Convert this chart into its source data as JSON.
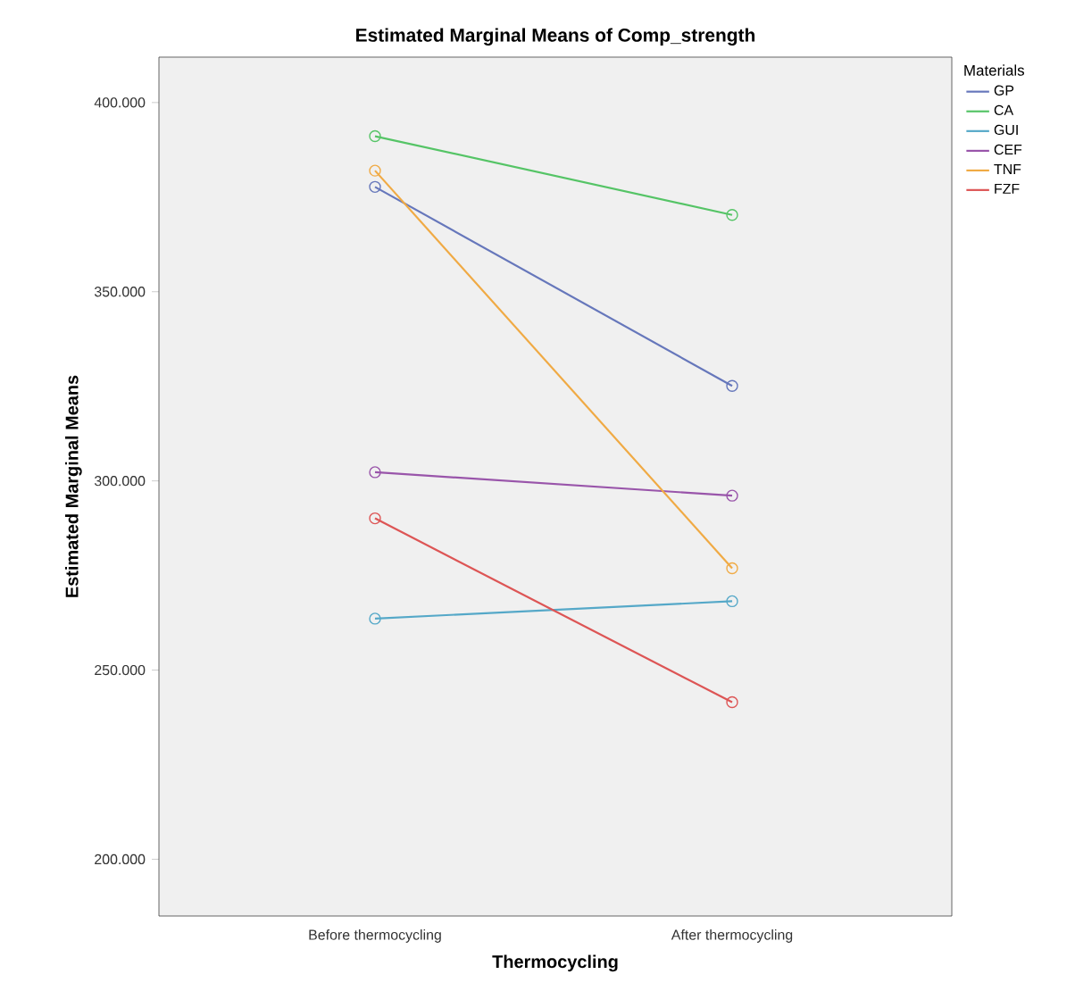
{
  "chart_data": {
    "type": "line",
    "title": "Estimated Marginal Means of Comp_strength",
    "xlabel": "Thermocycling",
    "ylabel": "Estimated Marginal Means",
    "legend_title": "Materials",
    "categories": [
      "Before thermocycling",
      "After thermocycling"
    ],
    "series": [
      {
        "name": "GP",
        "color": "#6677bb",
        "values": [
          377.7,
          325.1
        ]
      },
      {
        "name": "CA",
        "color": "#55c466",
        "values": [
          391.1,
          370.3
        ]
      },
      {
        "name": "GUI",
        "color": "#55a8c8",
        "values": [
          263.6,
          268.2
        ]
      },
      {
        "name": "CEF",
        "color": "#9955aa",
        "values": [
          302.3,
          296.1
        ]
      },
      {
        "name": "TNF",
        "color": "#f0aa44",
        "values": [
          382.0,
          276.9
        ]
      },
      {
        "name": "FZF",
        "color": "#dd5555",
        "values": [
          290.1,
          241.5
        ]
      }
    ],
    "ylim": [
      185,
      412
    ],
    "yticks": [
      {
        "value": 200,
        "label": "200.000"
      },
      {
        "value": 250,
        "label": "250.000"
      },
      {
        "value": 300,
        "label": "300.000"
      },
      {
        "value": 350,
        "label": "350.000"
      },
      {
        "value": 400,
        "label": "400.000"
      }
    ],
    "marker": "circle",
    "line_style": "solid",
    "grid": false,
    "legend": "right"
  }
}
